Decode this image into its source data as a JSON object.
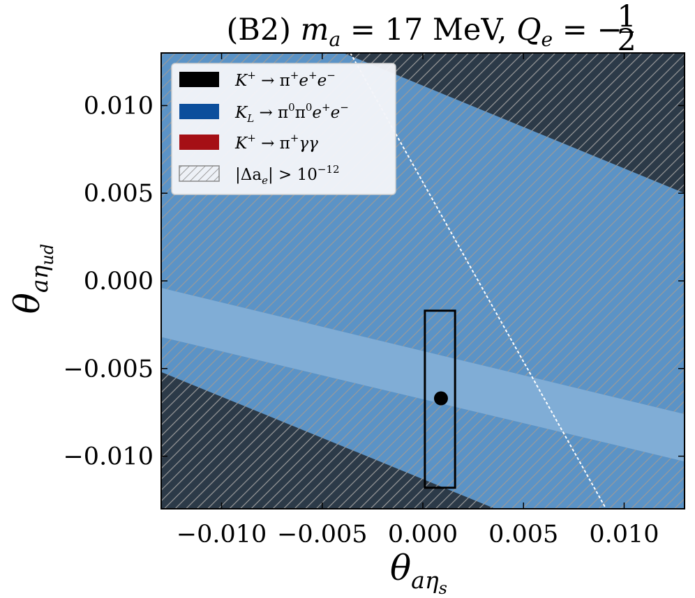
{
  "chart_data": {
    "type": "area",
    "title": {
      "prefix": "(B2) ",
      "m": "m",
      "m_sub": "a",
      "m_rest": " = 17 MeV,  ",
      "q": "Q",
      "q_sub": "e",
      "q_rest": " = −",
      "frac_num": "1",
      "frac_den": "2"
    },
    "xlabel": {
      "main": "θ",
      "sub": "aη",
      "subsub": "s"
    },
    "ylabel": {
      "main": "θ",
      "sub": "aη",
      "subsub": "ud"
    },
    "xlim": [
      -0.013,
      0.013
    ],
    "ylim": [
      -0.013,
      0.013
    ],
    "xticks": [
      -0.01,
      -0.005,
      0.0,
      0.005,
      0.01
    ],
    "yticks": [
      -0.01,
      -0.005,
      0.0,
      0.005,
      0.01
    ],
    "xtick_labels": [
      "−0.010",
      "−0.005",
      "0.000",
      "0.005",
      "0.010"
    ],
    "ytick_labels": [
      "−0.010",
      "−0.005",
      "0.000",
      "0.005",
      "0.010"
    ],
    "grid": false,
    "legend_position": "top-left",
    "legend": [
      {
        "main": "K",
        "sup1": "+",
        "rest": " → π",
        "sup2": "+",
        "rest2": "e",
        "sup3": "+",
        "rest3": "e",
        "sup4": "−",
        "swatch": "#000000"
      },
      {
        "main": "K",
        "sub1": "L",
        "rest": " → π",
        "sup2": "0",
        "rest2": "π",
        "sup3": "0",
        "rest3": "e",
        "sup4": "+",
        "rest4": "e",
        "sup5": "−",
        "swatch": "#0b4e9c"
      },
      {
        "main": "K",
        "sup1": "+",
        "rest": " → π",
        "sup2": "+",
        "rest2": "γγ",
        "swatch": "#a50f15"
      },
      {
        "main": "|Δa",
        "sub1": "e",
        "rest": "| > 10",
        "sup2": "−12",
        "swatch": "hatch"
      }
    ],
    "colors": {
      "kplus_ee_excluded": "#2c3a48",
      "kl_allowed_region": "#5b93c6",
      "central_band": "#80add6",
      "hatch": "#9a9a9a",
      "dashed_line": "#ffffff",
      "point": "#000000"
    },
    "regions": {
      "kplus_ee_upper_boundary": [
        [
          -0.00395,
          0.013
        ],
        [
          0.013,
          0.005
        ]
      ],
      "kplus_ee_lower_boundary": [
        [
          -0.013,
          -0.0052
        ],
        [
          0.0036,
          -0.013
        ]
      ],
      "central_band_top": [
        [
          -0.013,
          -0.0004
        ],
        [
          0.013,
          -0.0076
        ]
      ],
      "central_band_bottom": [
        [
          -0.013,
          -0.0032
        ],
        [
          0.013,
          -0.0103
        ]
      ],
      "dashed_line": [
        [
          -0.0036,
          0.013
        ],
        [
          0.0091,
          -0.013
        ]
      ]
    },
    "box": {
      "x": [
        0.0001,
        0.0016
      ],
      "y": [
        -0.0118,
        -0.0017
      ]
    },
    "point": {
      "x": 0.0009,
      "y": -0.0067
    }
  }
}
